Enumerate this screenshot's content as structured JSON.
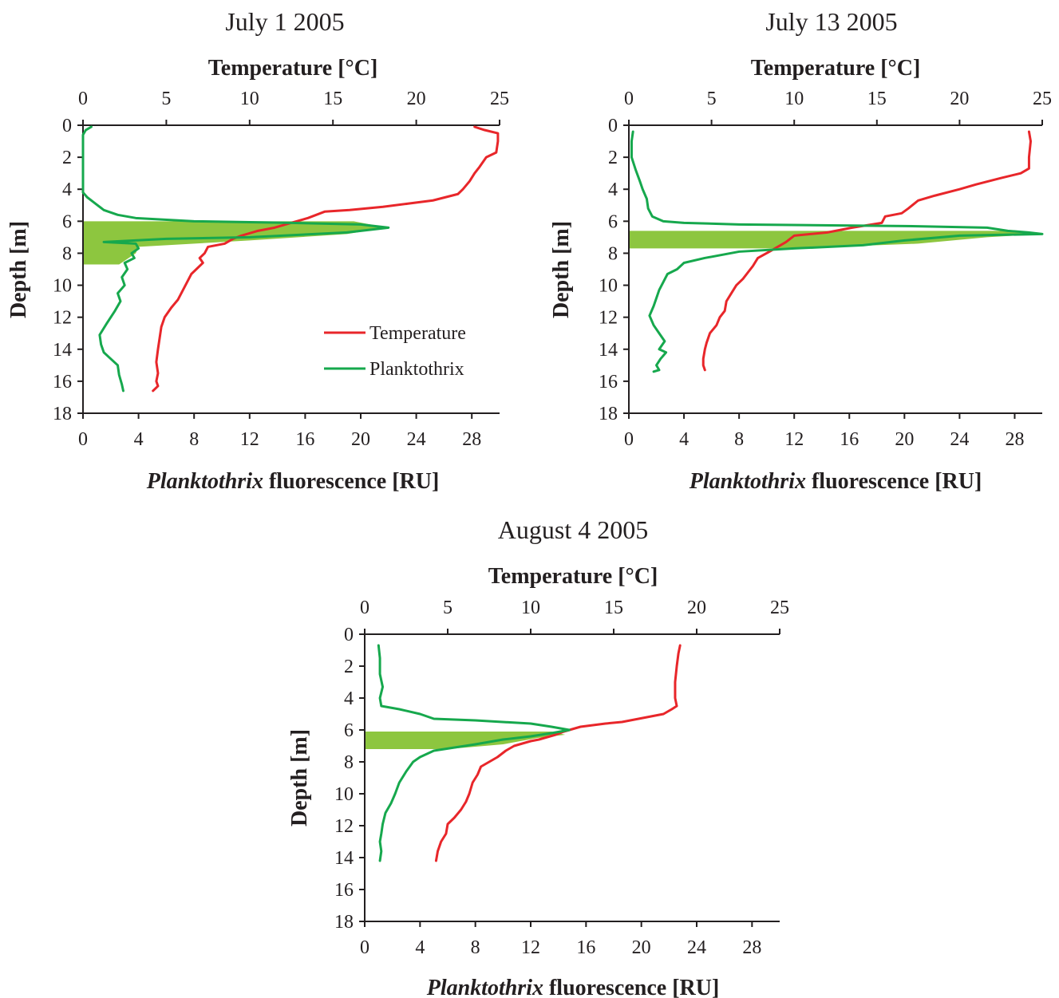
{
  "colors": {
    "temperature": "#e8262a",
    "planktothrix": "#16a84d",
    "band": "#8dc63f",
    "axis": "#231f20"
  },
  "legend": {
    "temperature": "Temperature",
    "planktothrix": "Planktothrix"
  },
  "chart_data": [
    {
      "type": "line",
      "title": "July 1 2005",
      "top_axis_label": "Temperature [°C]",
      "bottom_axis_label_italic": "Planktothrix",
      "bottom_axis_label_rest": " fluorescence [RU]",
      "ylabel": "Depth [m]",
      "temp_ticks": [
        0,
        5,
        10,
        15,
        20,
        25
      ],
      "fluor_ticks": [
        0,
        4,
        8,
        12,
        16,
        20,
        24,
        28
      ],
      "depth_ticks": [
        0,
        2,
        4,
        6,
        8,
        10,
        12,
        14,
        16,
        18
      ],
      "temp_range": [
        0,
        25
      ],
      "fluor_range": [
        0,
        30
      ],
      "depth_range": [
        0,
        18
      ],
      "band": {
        "depth_top": 6.0,
        "depth_bottom": 8.7,
        "fluor_profile": [
          [
            6.0,
            19.5
          ],
          [
            6.4,
            21.9
          ],
          [
            6.8,
            19.0
          ],
          [
            7.2,
            12.0
          ],
          [
            7.6,
            4.0
          ],
          [
            8.0,
            3.8
          ],
          [
            8.7,
            2.6
          ]
        ]
      },
      "series": [
        {
          "name": "Temperature",
          "axis": "top",
          "points": [
            [
              23.5,
              0.1
            ],
            [
              24.1,
              0.3
            ],
            [
              24.9,
              0.5
            ],
            [
              24.9,
              1.0
            ],
            [
              24.8,
              1.7
            ],
            [
              24.2,
              2.0
            ],
            [
              23.8,
              2.6
            ],
            [
              23.5,
              3.0
            ],
            [
              23.2,
              3.5
            ],
            [
              22.8,
              4.0
            ],
            [
              22.5,
              4.3
            ],
            [
              21.0,
              4.7
            ],
            [
              19.5,
              4.9
            ],
            [
              18.0,
              5.1
            ],
            [
              16.0,
              5.3
            ],
            [
              14.5,
              5.4
            ],
            [
              13.5,
              5.8
            ],
            [
              12.5,
              6.1
            ],
            [
              11.5,
              6.4
            ],
            [
              10.5,
              6.6
            ],
            [
              9.5,
              6.9
            ],
            [
              9.0,
              7.1
            ],
            [
              8.5,
              7.4
            ],
            [
              7.5,
              7.6
            ],
            [
              7.3,
              8.0
            ],
            [
              7.0,
              8.3
            ],
            [
              7.2,
              8.6
            ],
            [
              6.8,
              9.0
            ],
            [
              6.5,
              9.3
            ],
            [
              6.3,
              9.7
            ],
            [
              6.0,
              10.3
            ],
            [
              5.7,
              10.9
            ],
            [
              5.3,
              11.4
            ],
            [
              4.9,
              12.0
            ],
            [
              4.7,
              12.6
            ],
            [
              4.6,
              13.3
            ],
            [
              4.5,
              14.0
            ],
            [
              4.4,
              14.8
            ],
            [
              4.5,
              15.5
            ],
            [
              4.4,
              16.0
            ],
            [
              4.5,
              16.3
            ],
            [
              4.2,
              16.6
            ]
          ]
        },
        {
          "name": "Planktothrix",
          "axis": "bottom",
          "points": [
            [
              0.6,
              0.1
            ],
            [
              0.2,
              0.3
            ],
            [
              0.0,
              0.6
            ],
            [
              0.0,
              2.0
            ],
            [
              0.0,
              4.2
            ],
            [
              0.3,
              4.5
            ],
            [
              0.9,
              4.9
            ],
            [
              1.5,
              5.3
            ],
            [
              2.5,
              5.6
            ],
            [
              3.8,
              5.8
            ],
            [
              8.0,
              6.0
            ],
            [
              15.0,
              6.1
            ],
            [
              20.0,
              6.2
            ],
            [
              22.0,
              6.4
            ],
            [
              19.0,
              6.7
            ],
            [
              12.0,
              7.0
            ],
            [
              6.0,
              7.1
            ],
            [
              1.5,
              7.3
            ],
            [
              3.8,
              7.4
            ],
            [
              4.0,
              7.7
            ],
            [
              3.5,
              8.0
            ],
            [
              3.7,
              8.3
            ],
            [
              3.0,
              8.6
            ],
            [
              3.2,
              9.0
            ],
            [
              2.8,
              9.5
            ],
            [
              3.0,
              10.0
            ],
            [
              2.5,
              10.5
            ],
            [
              2.7,
              11.0
            ],
            [
              2.3,
              11.6
            ],
            [
              1.7,
              12.4
            ],
            [
              1.2,
              13.1
            ],
            [
              1.3,
              13.7
            ],
            [
              1.5,
              14.2
            ],
            [
              2.0,
              14.6
            ],
            [
              2.5,
              15.0
            ],
            [
              2.6,
              15.6
            ],
            [
              2.8,
              16.2
            ],
            [
              2.9,
              16.6
            ]
          ]
        }
      ]
    },
    {
      "type": "line",
      "title": "July 13 2005",
      "top_axis_label": "Temperature [°C]",
      "bottom_axis_label_italic": "Planktothrix",
      "bottom_axis_label_rest": " fluorescence [RU]",
      "ylabel": "Depth [m]",
      "temp_ticks": [
        0,
        5,
        10,
        15,
        20,
        25
      ],
      "fluor_ticks": [
        0,
        4,
        8,
        12,
        16,
        20,
        24,
        28
      ],
      "depth_ticks": [
        0,
        2,
        4,
        6,
        8,
        10,
        12,
        14,
        16,
        18
      ],
      "temp_range": [
        0,
        25
      ],
      "fluor_range": [
        0,
        30
      ],
      "depth_range": [
        0,
        18
      ],
      "band": {
        "depth_top": 6.6,
        "depth_bottom": 7.7,
        "fluor_profile": [
          [
            6.6,
            27.5
          ],
          [
            6.8,
            30.0
          ],
          [
            7.0,
            26.0
          ],
          [
            7.4,
            21.0
          ],
          [
            7.7,
            12.0
          ]
        ]
      },
      "series": [
        {
          "name": "Temperature",
          "axis": "top",
          "points": [
            [
              24.2,
              0.4
            ],
            [
              24.3,
              1.0
            ],
            [
              24.2,
              2.0
            ],
            [
              24.2,
              2.7
            ],
            [
              23.7,
              3.0
            ],
            [
              22.5,
              3.3
            ],
            [
              21.0,
              3.7
            ],
            [
              20.0,
              4.0
            ],
            [
              18.5,
              4.4
            ],
            [
              17.5,
              4.7
            ],
            [
              16.9,
              5.2
            ],
            [
              16.5,
              5.5
            ],
            [
              15.5,
              5.7
            ],
            [
              15.3,
              6.1
            ],
            [
              13.5,
              6.4
            ],
            [
              12.0,
              6.7
            ],
            [
              10.0,
              6.9
            ],
            [
              9.5,
              7.3
            ],
            [
              9.0,
              7.6
            ],
            [
              8.5,
              7.9
            ],
            [
              7.8,
              8.3
            ],
            [
              7.5,
              8.8
            ],
            [
              7.2,
              9.2
            ],
            [
              6.9,
              9.6
            ],
            [
              6.5,
              10.0
            ],
            [
              6.2,
              10.5
            ],
            [
              5.9,
              11.0
            ],
            [
              5.8,
              11.6
            ],
            [
              5.5,
              12.0
            ],
            [
              5.3,
              12.5
            ],
            [
              4.9,
              13.0
            ],
            [
              4.7,
              13.6
            ],
            [
              4.6,
              14.0
            ],
            [
              4.5,
              14.6
            ],
            [
              4.5,
              15.0
            ],
            [
              4.6,
              15.3
            ]
          ]
        },
        {
          "name": "Planktothrix",
          "axis": "bottom",
          "points": [
            [
              0.3,
              0.4
            ],
            [
              0.2,
              1.0
            ],
            [
              0.2,
              2.0
            ],
            [
              0.5,
              2.8
            ],
            [
              0.8,
              3.5
            ],
            [
              1.0,
              4.0
            ],
            [
              1.3,
              4.6
            ],
            [
              1.4,
              5.2
            ],
            [
              1.7,
              5.7
            ],
            [
              2.5,
              6.0
            ],
            [
              4.0,
              6.1
            ],
            [
              8.0,
              6.2
            ],
            [
              20.0,
              6.3
            ],
            [
              26.0,
              6.4
            ],
            [
              27.5,
              6.6
            ],
            [
              29.0,
              6.7
            ],
            [
              30.0,
              6.8
            ],
            [
              24.0,
              6.9
            ],
            [
              20.0,
              7.2
            ],
            [
              17.0,
              7.5
            ],
            [
              12.0,
              7.7
            ],
            [
              8.0,
              7.9
            ],
            [
              5.5,
              8.3
            ],
            [
              4.0,
              8.6
            ],
            [
              3.5,
              9.0
            ],
            [
              2.8,
              9.3
            ],
            [
              2.5,
              9.8
            ],
            [
              2.2,
              10.3
            ],
            [
              2.0,
              10.8
            ],
            [
              1.8,
              11.3
            ],
            [
              1.5,
              11.9
            ],
            [
              1.8,
              12.5
            ],
            [
              2.2,
              13.0
            ],
            [
              2.6,
              13.5
            ],
            [
              2.2,
              14.0
            ],
            [
              2.7,
              14.2
            ],
            [
              2.3,
              14.6
            ],
            [
              2.0,
              15.0
            ],
            [
              2.2,
              15.3
            ],
            [
              1.8,
              15.4
            ]
          ]
        }
      ]
    },
    {
      "type": "line",
      "title": "August 4 2005",
      "top_axis_label": "Temperature [°C]",
      "bottom_axis_label_italic": "Planktothrix",
      "bottom_axis_label_rest": " fluorescence [RU]",
      "ylabel": "Depth [m]",
      "temp_ticks": [
        0,
        5,
        10,
        15,
        20,
        25
      ],
      "fluor_ticks": [
        0,
        4,
        8,
        12,
        16,
        20,
        24,
        28
      ],
      "depth_ticks": [
        0,
        2,
        4,
        6,
        8,
        10,
        12,
        14,
        16,
        18
      ],
      "temp_range": [
        0,
        25
      ],
      "fluor_range": [
        0,
        30
      ],
      "depth_range": [
        0,
        18
      ],
      "band": {
        "depth_top": 6.1,
        "depth_bottom": 7.2,
        "fluor_profile": [
          [
            6.1,
            13.5
          ],
          [
            6.3,
            14.5
          ],
          [
            6.5,
            12.5
          ],
          [
            6.9,
            10.0
          ],
          [
            7.2,
            6.0
          ]
        ]
      },
      "series": [
        {
          "name": "Temperature",
          "axis": "top",
          "points": [
            [
              19.0,
              0.7
            ],
            [
              18.9,
              1.2
            ],
            [
              18.8,
              2.0
            ],
            [
              18.7,
              3.0
            ],
            [
              18.7,
              4.0
            ],
            [
              18.8,
              4.5
            ],
            [
              18.5,
              4.7
            ],
            [
              18.0,
              5.0
            ],
            [
              16.5,
              5.3
            ],
            [
              15.5,
              5.5
            ],
            [
              14.5,
              5.6
            ],
            [
              13.0,
              5.8
            ],
            [
              12.0,
              6.1
            ],
            [
              11.5,
              6.3
            ],
            [
              10.5,
              6.6
            ],
            [
              10.0,
              6.7
            ],
            [
              9.0,
              7.0
            ],
            [
              8.5,
              7.3
            ],
            [
              8.0,
              7.7
            ],
            [
              7.5,
              8.0
            ],
            [
              7.0,
              8.3
            ],
            [
              6.8,
              8.8
            ],
            [
              6.5,
              9.3
            ],
            [
              6.3,
              10.0
            ],
            [
              6.1,
              10.5
            ],
            [
              5.8,
              11.0
            ],
            [
              5.4,
              11.5
            ],
            [
              5.0,
              11.9
            ],
            [
              4.9,
              12.5
            ],
            [
              4.6,
              13.0
            ],
            [
              4.4,
              13.6
            ],
            [
              4.3,
              14.2
            ]
          ]
        },
        {
          "name": "Planktothrix",
          "axis": "bottom",
          "points": [
            [
              1.0,
              0.7
            ],
            [
              1.1,
              1.5
            ],
            [
              1.1,
              2.5
            ],
            [
              1.3,
              3.3
            ],
            [
              1.1,
              4.0
            ],
            [
              1.2,
              4.5
            ],
            [
              2.5,
              4.7
            ],
            [
              4.0,
              5.0
            ],
            [
              5.0,
              5.3
            ],
            [
              8.0,
              5.4
            ],
            [
              12.0,
              5.6
            ],
            [
              13.5,
              5.8
            ],
            [
              14.8,
              6.0
            ],
            [
              13.5,
              6.2
            ],
            [
              12.0,
              6.4
            ],
            [
              10.0,
              6.6
            ],
            [
              8.0,
              6.9
            ],
            [
              6.5,
              7.1
            ],
            [
              5.0,
              7.3
            ],
            [
              4.0,
              7.7
            ],
            [
              3.5,
              8.0
            ],
            [
              3.0,
              8.6
            ],
            [
              2.5,
              9.3
            ],
            [
              2.2,
              10.0
            ],
            [
              1.9,
              10.6
            ],
            [
              1.5,
              11.2
            ],
            [
              1.3,
              11.9
            ],
            [
              1.2,
              12.5
            ],
            [
              1.1,
              13.0
            ],
            [
              1.2,
              13.6
            ],
            [
              1.1,
              14.2
            ]
          ]
        }
      ]
    }
  ]
}
